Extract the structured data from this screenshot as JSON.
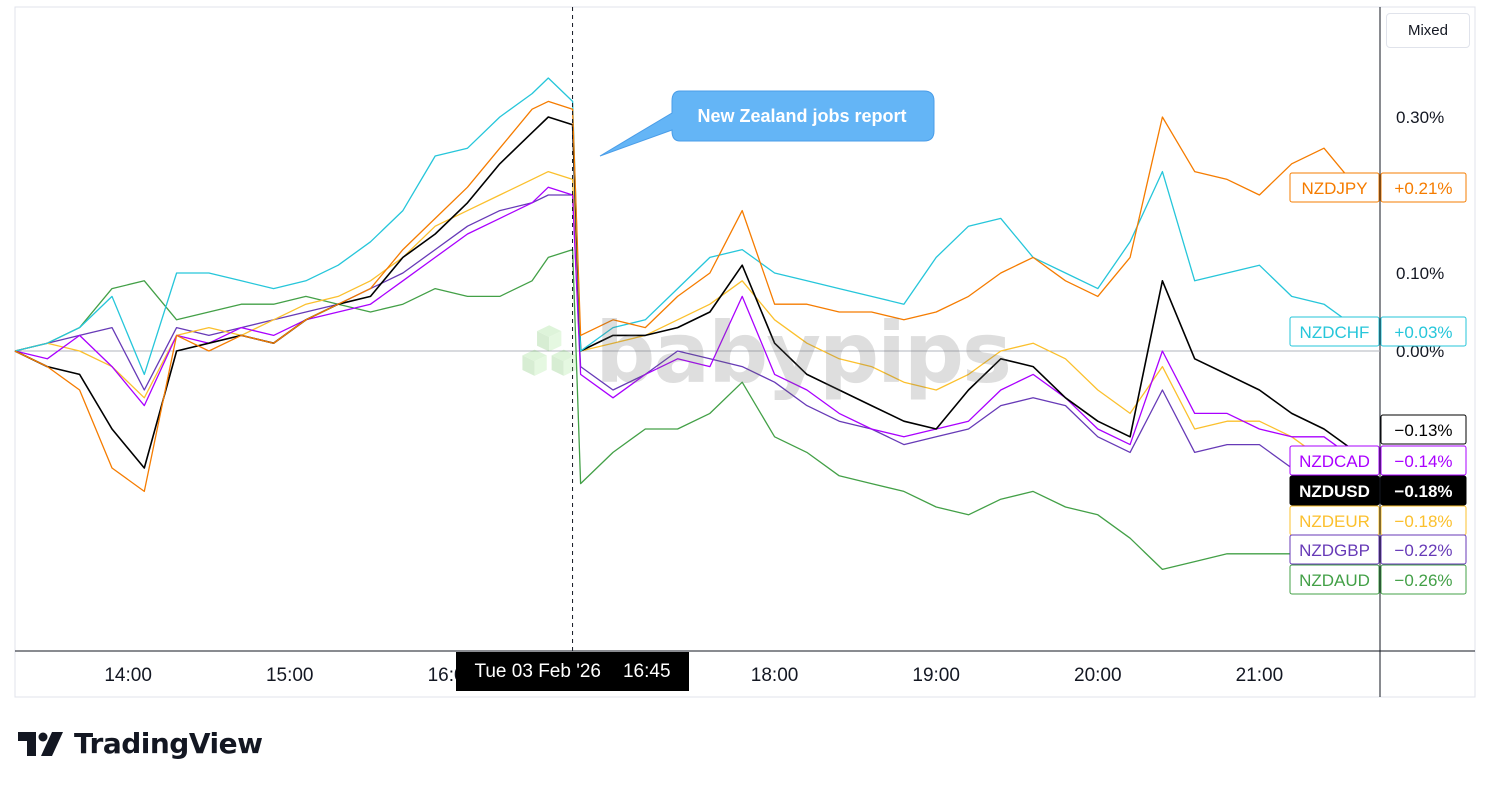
{
  "scale_mode": "Mixed",
  "annotation": "New Zealand jobs report",
  "crosshair": {
    "date": "Tue 03 Feb '26",
    "time": "16:45"
  },
  "brand": "TradingView",
  "watermark": "babypips",
  "colors": {
    "NZDJPY": "#f57c00",
    "NZDCHF": "#26c6da",
    "NZDUSD": "#000000",
    "NZDCAD": "#aa00ff",
    "NZDEUR": "#fbc02d",
    "NZDGBP": "#673ab7",
    "NZDAUD": "#43a047",
    "callout": "#64b5f6"
  },
  "chart_data": {
    "type": "line",
    "ylabel": "",
    "ylim": [
      -0.96,
      0.61
    ],
    "y_unit": "%",
    "y_ticks": [
      {
        "value": 0.3,
        "label": "0.30%"
      },
      {
        "value": 0.1,
        "label": "0.10%"
      },
      {
        "value": 0.0,
        "label": "0.00%"
      }
    ],
    "x_ticks": [
      "14:00",
      "15:00",
      "16:00",
      "18:00",
      "19:00",
      "20:00",
      "21:00"
    ],
    "x_tick_hours": [
      14,
      15,
      16,
      18,
      19,
      20,
      21
    ],
    "xlim_hours": [
      13.3,
      21.6
    ],
    "crosshair_hour": 16.75,
    "event_hour": 16.75,
    "value_labels": [
      {
        "symbol": "",
        "label": "−0.13%",
        "value": -0.13
      },
      {
        "symbol": "NZDJPY",
        "label": "+0.21%",
        "value": 0.21
      },
      {
        "symbol": "NZDCHF",
        "label": "+0.03%",
        "value": 0.03
      },
      {
        "symbol": "NZDCAD",
        "label": "−0.14%",
        "value": -0.14
      },
      {
        "symbol": "NZDUSD",
        "label": "−0.18%",
        "value": -0.18
      },
      {
        "symbol": "NZDEUR",
        "label": "−0.18%",
        "value": -0.18
      },
      {
        "symbol": "NZDGBP",
        "label": "−0.22%",
        "value": -0.22
      },
      {
        "symbol": "NZDAUD",
        "label": "−0.26%",
        "value": -0.26
      }
    ],
    "series": [
      {
        "name": "NZDAUD",
        "hours": [
          13.3,
          13.5,
          13.7,
          13.9,
          14.1,
          14.3,
          14.5,
          14.7,
          14.9,
          15.1,
          15.3,
          15.5,
          15.7,
          15.9,
          16.1,
          16.3,
          16.5,
          16.6,
          16.75,
          16.8,
          17.0,
          17.2,
          17.4,
          17.6,
          17.8,
          18.0,
          18.2,
          18.4,
          18.6,
          18.8,
          19.0,
          19.2,
          19.4,
          19.6,
          19.8,
          20.0,
          20.2,
          20.4,
          20.6,
          20.8,
          21.0,
          21.2,
          21.4,
          21.6
        ],
        "values": [
          0.0,
          0.01,
          0.03,
          0.08,
          0.09,
          0.04,
          0.05,
          0.06,
          0.06,
          0.07,
          0.06,
          0.05,
          0.06,
          0.08,
          0.07,
          0.07,
          0.09,
          0.12,
          0.13,
          -0.17,
          -0.13,
          -0.1,
          -0.1,
          -0.08,
          -0.04,
          -0.11,
          -0.13,
          -0.16,
          -0.17,
          -0.18,
          -0.2,
          -0.21,
          -0.19,
          -0.18,
          -0.2,
          -0.21,
          -0.24,
          -0.28,
          -0.27,
          -0.26,
          -0.26,
          -0.26,
          -0.26,
          -0.26
        ]
      },
      {
        "name": "NZDGBP",
        "hours": [
          13.3,
          13.5,
          13.7,
          13.9,
          14.1,
          14.3,
          14.5,
          14.7,
          14.9,
          15.1,
          15.3,
          15.5,
          15.7,
          15.9,
          16.1,
          16.3,
          16.5,
          16.6,
          16.75,
          16.8,
          17.0,
          17.2,
          17.4,
          17.6,
          17.8,
          18.0,
          18.2,
          18.4,
          18.6,
          18.8,
          19.0,
          19.2,
          19.4,
          19.6,
          19.8,
          20.0,
          20.2,
          20.4,
          20.6,
          20.8,
          21.0,
          21.2,
          21.4,
          21.6
        ],
        "values": [
          0.0,
          0.01,
          0.02,
          0.03,
          -0.05,
          0.03,
          0.02,
          0.03,
          0.04,
          0.05,
          0.06,
          0.08,
          0.1,
          0.13,
          0.16,
          0.18,
          0.19,
          0.2,
          0.2,
          -0.02,
          -0.05,
          -0.03,
          0.0,
          -0.01,
          -0.02,
          -0.04,
          -0.07,
          -0.09,
          -0.1,
          -0.12,
          -0.11,
          -0.1,
          -0.07,
          -0.06,
          -0.07,
          -0.11,
          -0.13,
          -0.05,
          -0.13,
          -0.12,
          -0.12,
          -0.15,
          -0.18,
          -0.22
        ]
      },
      {
        "name": "NZDEUR",
        "hours": [
          13.3,
          13.5,
          13.7,
          13.9,
          14.1,
          14.3,
          14.5,
          14.7,
          14.9,
          15.1,
          15.3,
          15.5,
          15.7,
          15.9,
          16.1,
          16.3,
          16.5,
          16.6,
          16.75,
          16.8,
          17.0,
          17.2,
          17.4,
          17.6,
          17.8,
          18.0,
          18.2,
          18.4,
          18.6,
          18.8,
          19.0,
          19.2,
          19.4,
          19.6,
          19.8,
          20.0,
          20.2,
          20.4,
          20.6,
          20.8,
          21.0,
          21.2,
          21.4,
          21.6
        ],
        "values": [
          0.0,
          0.01,
          0.0,
          -0.02,
          -0.06,
          0.02,
          0.03,
          0.02,
          0.04,
          0.06,
          0.07,
          0.09,
          0.12,
          0.16,
          0.18,
          0.2,
          0.22,
          0.23,
          0.22,
          0.0,
          0.01,
          0.02,
          0.04,
          0.06,
          0.09,
          0.04,
          0.01,
          -0.01,
          -0.02,
          -0.04,
          -0.05,
          -0.03,
          0.0,
          0.01,
          -0.01,
          -0.05,
          -0.08,
          -0.02,
          -0.1,
          -0.09,
          -0.09,
          -0.11,
          -0.14,
          -0.18
        ]
      },
      {
        "name": "NZDCAD",
        "hours": [
          13.3,
          13.5,
          13.7,
          13.9,
          14.1,
          14.3,
          14.5,
          14.7,
          14.9,
          15.1,
          15.3,
          15.5,
          15.7,
          15.9,
          16.1,
          16.3,
          16.5,
          16.6,
          16.75,
          16.8,
          17.0,
          17.2,
          17.4,
          17.6,
          17.8,
          18.0,
          18.2,
          18.4,
          18.6,
          18.8,
          19.0,
          19.2,
          19.4,
          19.6,
          19.8,
          20.0,
          20.2,
          20.4,
          20.6,
          20.8,
          21.0,
          21.2,
          21.4,
          21.6
        ],
        "values": [
          0.0,
          -0.01,
          0.02,
          -0.02,
          -0.07,
          0.02,
          0.01,
          0.03,
          0.02,
          0.04,
          0.05,
          0.06,
          0.09,
          0.12,
          0.15,
          0.17,
          0.19,
          0.21,
          0.2,
          -0.03,
          -0.06,
          -0.03,
          -0.01,
          -0.02,
          0.07,
          -0.03,
          -0.05,
          -0.08,
          -0.1,
          -0.11,
          -0.1,
          -0.09,
          -0.05,
          -0.03,
          -0.06,
          -0.1,
          -0.12,
          0.0,
          -0.08,
          -0.08,
          -0.1,
          -0.11,
          -0.11,
          -0.14
        ]
      },
      {
        "name": "NZDUSD",
        "hours": [
          13.3,
          13.5,
          13.7,
          13.9,
          14.1,
          14.3,
          14.5,
          14.7,
          14.9,
          15.1,
          15.3,
          15.5,
          15.7,
          15.9,
          16.1,
          16.3,
          16.5,
          16.6,
          16.75,
          16.8,
          17.0,
          17.2,
          17.4,
          17.6,
          17.8,
          18.0,
          18.2,
          18.4,
          18.6,
          18.8,
          19.0,
          19.2,
          19.4,
          19.6,
          19.8,
          20.0,
          20.2,
          20.4,
          20.6,
          20.8,
          21.0,
          21.2,
          21.4,
          21.6
        ],
        "values": [
          0.0,
          -0.02,
          -0.03,
          -0.1,
          -0.15,
          0.0,
          0.01,
          0.02,
          0.01,
          0.04,
          0.06,
          0.07,
          0.12,
          0.15,
          0.19,
          0.24,
          0.28,
          0.3,
          0.29,
          0.0,
          0.02,
          0.02,
          0.03,
          0.05,
          0.11,
          0.01,
          -0.03,
          -0.05,
          -0.07,
          -0.09,
          -0.1,
          -0.05,
          -0.01,
          -0.02,
          -0.06,
          -0.09,
          -0.11,
          0.09,
          -0.01,
          -0.03,
          -0.05,
          -0.08,
          -0.1,
          -0.13
        ]
      },
      {
        "name": "NZDCHF",
        "hours": [
          13.3,
          13.5,
          13.7,
          13.9,
          14.1,
          14.3,
          14.5,
          14.7,
          14.9,
          15.1,
          15.3,
          15.5,
          15.7,
          15.9,
          16.1,
          16.3,
          16.5,
          16.6,
          16.75,
          16.8,
          17.0,
          17.2,
          17.4,
          17.6,
          17.8,
          18.0,
          18.2,
          18.4,
          18.6,
          18.8,
          19.0,
          19.2,
          19.4,
          19.6,
          19.8,
          20.0,
          20.2,
          20.4,
          20.6,
          20.8,
          21.0,
          21.2,
          21.4,
          21.6
        ],
        "values": [
          0.0,
          0.01,
          0.03,
          0.07,
          -0.03,
          0.1,
          0.1,
          0.09,
          0.08,
          0.09,
          0.11,
          0.14,
          0.18,
          0.25,
          0.26,
          0.3,
          0.33,
          0.35,
          0.32,
          0.0,
          0.03,
          0.04,
          0.08,
          0.12,
          0.13,
          0.1,
          0.09,
          0.08,
          0.07,
          0.06,
          0.12,
          0.16,
          0.17,
          0.12,
          0.1,
          0.08,
          0.14,
          0.23,
          0.09,
          0.1,
          0.11,
          0.07,
          0.06,
          0.03
        ]
      },
      {
        "name": "NZDJPY",
        "hours": [
          13.3,
          13.5,
          13.7,
          13.9,
          14.1,
          14.3,
          14.5,
          14.7,
          14.9,
          15.1,
          15.3,
          15.5,
          15.7,
          15.9,
          16.1,
          16.3,
          16.5,
          16.6,
          16.75,
          16.8,
          17.0,
          17.2,
          17.4,
          17.6,
          17.8,
          18.0,
          18.2,
          18.4,
          18.6,
          18.8,
          19.0,
          19.2,
          19.4,
          19.6,
          19.8,
          20.0,
          20.2,
          20.4,
          20.6,
          20.8,
          21.0,
          21.2,
          21.4,
          21.6
        ],
        "values": [
          0.0,
          -0.02,
          -0.05,
          -0.15,
          -0.18,
          0.02,
          0.0,
          0.02,
          0.01,
          0.04,
          0.06,
          0.08,
          0.13,
          0.17,
          0.21,
          0.26,
          0.31,
          0.32,
          0.31,
          0.02,
          0.04,
          0.03,
          0.07,
          0.1,
          0.18,
          0.06,
          0.06,
          0.05,
          0.05,
          0.04,
          0.05,
          0.07,
          0.1,
          0.12,
          0.09,
          0.07,
          0.12,
          0.3,
          0.23,
          0.22,
          0.2,
          0.24,
          0.26,
          0.21
        ]
      }
    ]
  }
}
